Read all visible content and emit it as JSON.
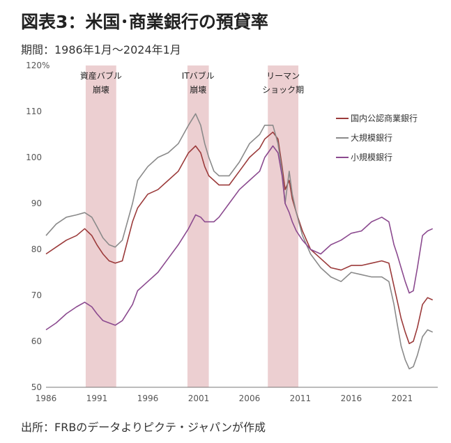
{
  "title": "図表3：米国･商業銀行の預貸率",
  "subtitle": "期間：1986年1月～2024年1月",
  "source": "出所：FRBのデータよりピクテ・ジャパンが作成",
  "chart_data": {
    "type": "line",
    "unit_label": "%",
    "xlim": [
      1986,
      2024.5
    ],
    "ylim": [
      50,
      120
    ],
    "xticks": [
      1986,
      1991,
      1996,
      2001,
      2006,
      2011,
      2016,
      2021
    ],
    "yticks": [
      50,
      60,
      70,
      80,
      90,
      100,
      110,
      120
    ],
    "grid": false,
    "legend_position": "right",
    "shaded_periods": [
      {
        "label_lines": [
          "資産バブル",
          "崩壊"
        ],
        "start": 1989.9,
        "end": 1992.9
      },
      {
        "label_lines": [
          "ITバブル",
          "崩壊"
        ],
        "start": 1999.9,
        "end": 2002.0
      },
      {
        "label_lines": [
          "リーマン",
          "ショック期"
        ],
        "start": 2007.8,
        "end": 2010.8
      }
    ],
    "shade_color": "#eccfd1",
    "series": [
      {
        "name": "国内公認商業銀行",
        "color": "#9b3a3a",
        "x": [
          1986,
          1987,
          1988,
          1989,
          1989.8,
          1990.5,
          1991,
          1991.6,
          1992.2,
          1992.8,
          1993.5,
          1994.5,
          1995,
          1996,
          1997,
          1998,
          1999,
          2000,
          2000.7,
          2001.2,
          2001.6,
          2002,
          2002.5,
          2003,
          2004,
          2005,
          2006,
          2007,
          2007.5,
          2008.3,
          2008.8,
          2009.2,
          2009.5,
          2009.9,
          2010.2,
          2010.6,
          2011.2,
          2012,
          2013,
          2014,
          2015,
          2016,
          2017,
          2018,
          2019,
          2019.7,
          2020.2,
          2020.5,
          2020.9,
          2021.3,
          2021.7,
          2022.1,
          2022.5,
          2023,
          2023.5,
          2024
        ],
        "values": [
          79,
          80.5,
          82,
          83,
          84.5,
          83,
          81,
          79,
          77.5,
          77,
          77.5,
          86,
          89,
          92,
          93,
          95,
          97,
          101,
          102.5,
          101,
          98,
          96,
          95,
          94,
          94,
          97,
          100,
          102,
          104,
          105.5,
          104,
          98,
          93,
          95,
          91,
          88,
          84,
          80,
          78,
          76,
          75.5,
          76.5,
          76.5,
          77,
          77.5,
          77,
          72,
          69,
          65,
          62,
          59.5,
          60,
          63,
          68,
          69.5,
          69
        ],
        "linewidth": 1.6
      },
      {
        "name": "大規模銀行",
        "color": "#8a8a8a",
        "x": [
          1986,
          1987,
          1988,
          1989,
          1989.8,
          1990.5,
          1991,
          1991.6,
          1992.2,
          1992.8,
          1993.5,
          1994.5,
          1995,
          1996,
          1997,
          1998,
          1999,
          2000,
          2000.7,
          2001.2,
          2001.6,
          2002,
          2002.5,
          2003,
          2004,
          2005,
          2006,
          2007,
          2007.5,
          2008.3,
          2008.8,
          2009.2,
          2009.5,
          2009.9,
          2010.2,
          2010.6,
          2011.2,
          2012,
          2013,
          2014,
          2015,
          2016,
          2017,
          2018,
          2019,
          2019.7,
          2020.2,
          2020.5,
          2020.9,
          2021.3,
          2021.7,
          2022.1,
          2022.5,
          2023,
          2023.5,
          2024
        ],
        "values": [
          83,
          85.5,
          87,
          87.5,
          88,
          87,
          85,
          82.5,
          81,
          80.5,
          82,
          90,
          95,
          98,
          100,
          101,
          103,
          107,
          109.5,
          107,
          103,
          100,
          97,
          96,
          96,
          99,
          103,
          105,
          107,
          107,
          103,
          97,
          90,
          97,
          92,
          88,
          83,
          79,
          76,
          74,
          73,
          75,
          74.5,
          74,
          74,
          73,
          68,
          64,
          59,
          56,
          54,
          54.5,
          57,
          61,
          62.5,
          62
        ],
        "linewidth": 1.6
      },
      {
        "name": "小規模銀行",
        "color": "#8b4a8f",
        "x": [
          1986,
          1987,
          1988,
          1989,
          1989.8,
          1990.5,
          1991,
          1991.6,
          1992.2,
          1992.8,
          1993.5,
          1994.5,
          1995,
          1996,
          1997,
          1998,
          1999,
          2000,
          2000.7,
          2001.2,
          2001.6,
          2002,
          2002.5,
          2003,
          2004,
          2005,
          2006,
          2007,
          2007.5,
          2008.3,
          2008.8,
          2009.2,
          2009.5,
          2009.9,
          2010.2,
          2010.6,
          2011.2,
          2012,
          2013,
          2014,
          2015,
          2016,
          2017,
          2018,
          2019,
          2019.7,
          2020.2,
          2020.5,
          2020.9,
          2021.3,
          2021.7,
          2022.1,
          2022.5,
          2023,
          2023.5,
          2024
        ],
        "values": [
          62.5,
          64,
          66,
          67.5,
          68.5,
          67.5,
          66,
          64.5,
          64,
          63.5,
          64.5,
          68,
          71,
          73,
          75,
          78,
          81,
          84.5,
          87.5,
          87,
          86,
          86,
          86,
          87,
          90,
          93,
          95,
          97,
          100,
          102.5,
          101,
          96,
          90,
          88,
          86,
          84,
          82,
          80,
          79,
          81,
          82,
          83.5,
          84,
          86,
          87,
          86,
          81,
          79,
          76,
          73,
          70.5,
          71,
          76,
          83,
          84,
          84.5
        ],
        "linewidth": 1.6
      }
    ]
  }
}
